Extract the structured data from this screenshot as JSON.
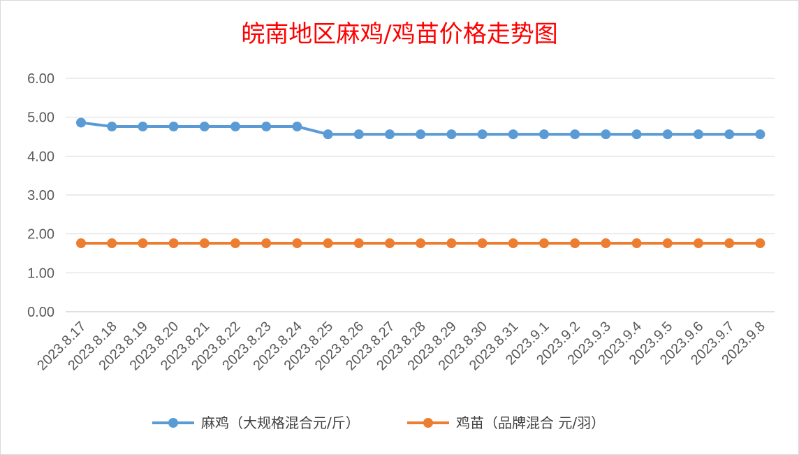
{
  "chart_data": {
    "type": "line",
    "title": "皖南地区麻鸡/鸡苗价格走势图",
    "x": [
      "2023.8.17",
      "2023.8.18",
      "2023.8.19",
      "2023.8.20",
      "2023.8.21",
      "2023.8.22",
      "2023.8.23",
      "2023.8.24",
      "2023.8.25",
      "2023.8.26",
      "2023.8.27",
      "2023.8.28",
      "2023.8.29",
      "2023.8.30",
      "2023.8.31",
      "2023.9.1",
      "2023.9.2",
      "2023.9.3",
      "2023.9.4",
      "2023.9.5",
      "2023.9.6",
      "2023.9.7",
      "2023.9.8"
    ],
    "series": [
      {
        "name": "麻鸡（大规格混合元/斤）",
        "color": "#5b9bd5",
        "values": [
          4.86,
          4.76,
          4.76,
          4.76,
          4.76,
          4.76,
          4.76,
          4.76,
          4.56,
          4.56,
          4.56,
          4.56,
          4.56,
          4.56,
          4.56,
          4.56,
          4.56,
          4.56,
          4.56,
          4.56,
          4.56,
          4.56,
          4.56
        ]
      },
      {
        "name": "鸡苗（品牌混合 元/羽）",
        "color": "#ed7d31",
        "values": [
          1.76,
          1.76,
          1.76,
          1.76,
          1.76,
          1.76,
          1.76,
          1.76,
          1.76,
          1.76,
          1.76,
          1.76,
          1.76,
          1.76,
          1.76,
          1.76,
          1.76,
          1.76,
          1.76,
          1.76,
          1.76,
          1.76,
          1.76
        ]
      }
    ],
    "yticks": [
      "0.00",
      "1.00",
      "2.00",
      "3.00",
      "4.00",
      "5.00",
      "6.00"
    ],
    "ylim": [
      0,
      6
    ],
    "grid": true,
    "legend": "bottom"
  }
}
